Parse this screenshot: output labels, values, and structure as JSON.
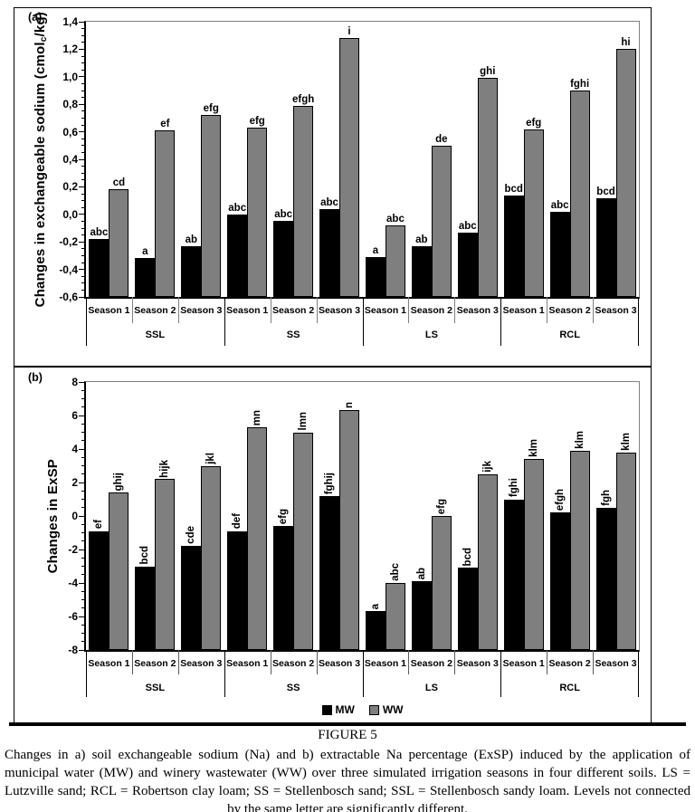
{
  "figure": {
    "panel_a_tag": "(a)",
    "panel_b_tag": "(b)",
    "caption_title": "FIGURE 5",
    "caption_text": "Changes in a) soil exchangeable sodium (Na) and b) extractable Na percentage (ExSP) induced by the application of municipal water (MW) and winery wastewater (WW) over three simulated irrigation seasons in four different soils. LS = Lutzville sand; RCL = Robertson clay loam; SS = Stellenbosch sand; SSL = Stellenbosch sandy loam. Levels not connected by the same letter are significantly different."
  },
  "chart_data": [
    {
      "type": "bar",
      "panel": "a",
      "ylabel_pre": "Changes in exchangeable sodium (cmol",
      "ylabel_sub": "c",
      "ylabel_post": "/kg)",
      "ylim": [
        -0.6,
        1.4
      ],
      "ytick_step": 0.2,
      "ytick_labels": [
        "1,4",
        "1,2",
        "1,0",
        "0,8",
        "0,6",
        "0,4",
        "0,2",
        "0,0",
        "-0,2",
        "-0,4",
        "-0,6"
      ],
      "bars_drawn_from": "axis_min",
      "grid": "off",
      "groups": [
        "SSL",
        "SS",
        "LS",
        "RCL"
      ],
      "seasons": [
        "Season 1",
        "Season 2",
        "Season 3"
      ],
      "series_names": [
        "MW",
        "WW"
      ],
      "series_colors": {
        "MW": "#000000",
        "WW": "#7f7f7f"
      },
      "points": [
        {
          "group": "SSL",
          "season": "Season 1",
          "MW": {
            "value": -0.18,
            "letter": "abc"
          },
          "WW": {
            "value": 0.18,
            "letter": "cd"
          }
        },
        {
          "group": "SSL",
          "season": "Season 2",
          "MW": {
            "value": -0.32,
            "letter": "a"
          },
          "WW": {
            "value": 0.61,
            "letter": "ef"
          }
        },
        {
          "group": "SSL",
          "season": "Season 3",
          "MW": {
            "value": -0.23,
            "letter": "ab"
          },
          "WW": {
            "value": 0.72,
            "letter": "efg"
          }
        },
        {
          "group": "SS",
          "season": "Season 1",
          "MW": {
            "value": 0.0,
            "letter": "abc"
          },
          "WW": {
            "value": 0.63,
            "letter": "efg"
          }
        },
        {
          "group": "SS",
          "season": "Season 2",
          "MW": {
            "value": -0.05,
            "letter": "abc"
          },
          "WW": {
            "value": 0.79,
            "letter": "efgh"
          }
        },
        {
          "group": "SS",
          "season": "Season 3",
          "MW": {
            "value": 0.04,
            "letter": "abc"
          },
          "WW": {
            "value": 1.28,
            "letter": "i"
          }
        },
        {
          "group": "LS",
          "season": "Season 1",
          "MW": {
            "value": -0.31,
            "letter": "a"
          },
          "WW": {
            "value": -0.08,
            "letter": "abc"
          }
        },
        {
          "group": "LS",
          "season": "Season 2",
          "MW": {
            "value": -0.23,
            "letter": "ab"
          },
          "WW": {
            "value": 0.5,
            "letter": "de"
          }
        },
        {
          "group": "LS",
          "season": "Season 3",
          "MW": {
            "value": -0.13,
            "letter": "abc"
          },
          "WW": {
            "value": 0.99,
            "letter": "ghi"
          }
        },
        {
          "group": "RCL",
          "season": "Season 1",
          "MW": {
            "value": 0.14,
            "letter": "bcd"
          },
          "WW": {
            "value": 0.62,
            "letter": "efg"
          }
        },
        {
          "group": "RCL",
          "season": "Season 2",
          "MW": {
            "value": 0.02,
            "letter": "abc"
          },
          "WW": {
            "value": 0.9,
            "letter": "fghi"
          }
        },
        {
          "group": "RCL",
          "season": "Season 3",
          "MW": {
            "value": 0.12,
            "letter": "bcd"
          },
          "WW": {
            "value": 1.2,
            "letter": "hi"
          }
        }
      ]
    },
    {
      "type": "bar",
      "panel": "b",
      "ylabel_pre": "Changes in ExSP",
      "ylabel_sub": "",
      "ylabel_post": "",
      "ylim": [
        -8,
        8
      ],
      "ytick_step": 2,
      "ytick_labels": [
        "8",
        "6",
        "4",
        "2",
        "0",
        "-2",
        "-4",
        "-6",
        "-8"
      ],
      "bars_drawn_from": "axis_min",
      "grid": "off",
      "groups": [
        "SSL",
        "SS",
        "LS",
        "RCL"
      ],
      "seasons": [
        "Season 1",
        "Season 2",
        "Season 3"
      ],
      "series_names": [
        "MW",
        "WW"
      ],
      "series_colors": {
        "MW": "#000000",
        "WW": "#7f7f7f"
      },
      "legend": [
        "MW",
        "WW"
      ],
      "points": [
        {
          "group": "SSL",
          "season": "Season 1",
          "MW": {
            "value": -0.9,
            "letter": "ef"
          },
          "WW": {
            "value": 1.4,
            "letter": "ghij"
          }
        },
        {
          "group": "SSL",
          "season": "Season 2",
          "MW": {
            "value": -3.0,
            "letter": "bcd"
          },
          "WW": {
            "value": 2.2,
            "letter": "hijk"
          }
        },
        {
          "group": "SSL",
          "season": "Season 3",
          "MW": {
            "value": -1.8,
            "letter": "cde"
          },
          "WW": {
            "value": 3.0,
            "letter": "jkl"
          }
        },
        {
          "group": "SS",
          "season": "Season 1",
          "MW": {
            "value": -0.9,
            "letter": "def"
          },
          "WW": {
            "value": 5.3,
            "letter": "mn"
          }
        },
        {
          "group": "SS",
          "season": "Season 2",
          "MW": {
            "value": -0.6,
            "letter": "efg"
          },
          "WW": {
            "value": 5.0,
            "letter": "lmn"
          }
        },
        {
          "group": "SS",
          "season": "Season 3",
          "MW": {
            "value": 1.2,
            "letter": "fghij"
          },
          "WW": {
            "value": 6.3,
            "letter": "n"
          }
        },
        {
          "group": "LS",
          "season": "Season 1",
          "MW": {
            "value": -5.7,
            "letter": "a"
          },
          "WW": {
            "value": -4.0,
            "letter": "abc"
          }
        },
        {
          "group": "LS",
          "season": "Season 2",
          "MW": {
            "value": -3.9,
            "letter": "ab"
          },
          "WW": {
            "value": 0.0,
            "letter": "efg"
          }
        },
        {
          "group": "LS",
          "season": "Season 3",
          "MW": {
            "value": -3.1,
            "letter": "bcd"
          },
          "WW": {
            "value": 2.5,
            "letter": "ijk"
          }
        },
        {
          "group": "RCL",
          "season": "Season 1",
          "MW": {
            "value": 1.0,
            "letter": "fghi"
          },
          "WW": {
            "value": 3.4,
            "letter": "klm"
          }
        },
        {
          "group": "RCL",
          "season": "Season 2",
          "MW": {
            "value": 0.2,
            "letter": "efgh"
          },
          "WW": {
            "value": 3.9,
            "letter": "klm"
          }
        },
        {
          "group": "RCL",
          "season": "Season 3",
          "MW": {
            "value": 0.5,
            "letter": "fgh"
          },
          "WW": {
            "value": 3.8,
            "letter": "klm"
          }
        }
      ]
    }
  ]
}
